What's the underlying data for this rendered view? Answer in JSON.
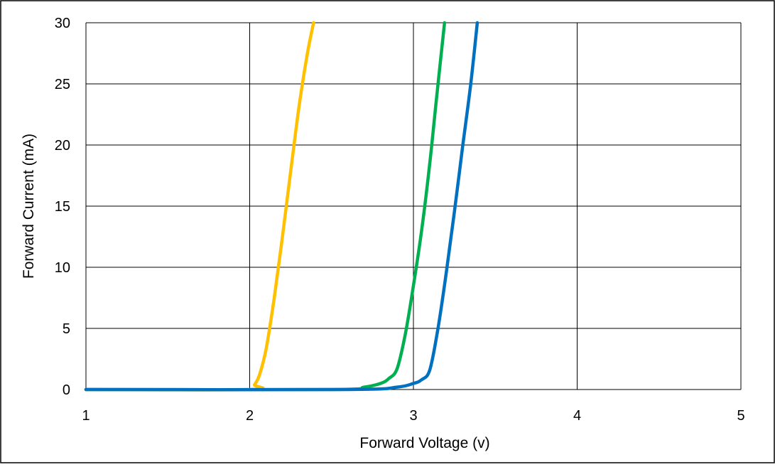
{
  "chart_data": {
    "type": "line",
    "title": "",
    "xlabel": "Forward Voltage (v)",
    "ylabel": "Forward Current (mA)",
    "xlim": [
      1,
      5
    ],
    "ylim": [
      0,
      30
    ],
    "xticks": [
      1,
      2,
      3,
      4,
      5
    ],
    "yticks": [
      0,
      5,
      10,
      15,
      20,
      25,
      30
    ],
    "grid": true,
    "legend": "none",
    "series": [
      {
        "color": "#FFC000",
        "x": [
          1.0,
          2.0,
          2.03,
          2.06,
          2.1,
          2.15,
          2.2,
          2.25,
          2.3,
          2.35,
          2.39
        ],
        "y": [
          0,
          0,
          0.4,
          1.2,
          3.3,
          7.5,
          12.5,
          17.8,
          23.0,
          27.3,
          30
        ]
      },
      {
        "color": "#00B050",
        "x": [
          1.0,
          2.5,
          2.7,
          2.8,
          2.85,
          2.9,
          2.95,
          3.0,
          3.05,
          3.1,
          3.14,
          3.19
        ],
        "y": [
          0,
          0,
          0.2,
          0.5,
          0.9,
          1.7,
          4.5,
          8.5,
          13.0,
          18.5,
          23.7,
          30
        ]
      },
      {
        "color": "#0070C0",
        "x": [
          1.0,
          2.6,
          2.9,
          3.0,
          3.05,
          3.1,
          3.15,
          3.2,
          3.25,
          3.3,
          3.35,
          3.39
        ],
        "y": [
          0,
          0,
          0.2,
          0.5,
          0.8,
          1.6,
          5.0,
          9.5,
          14.5,
          19.8,
          25.0,
          30
        ]
      }
    ]
  }
}
